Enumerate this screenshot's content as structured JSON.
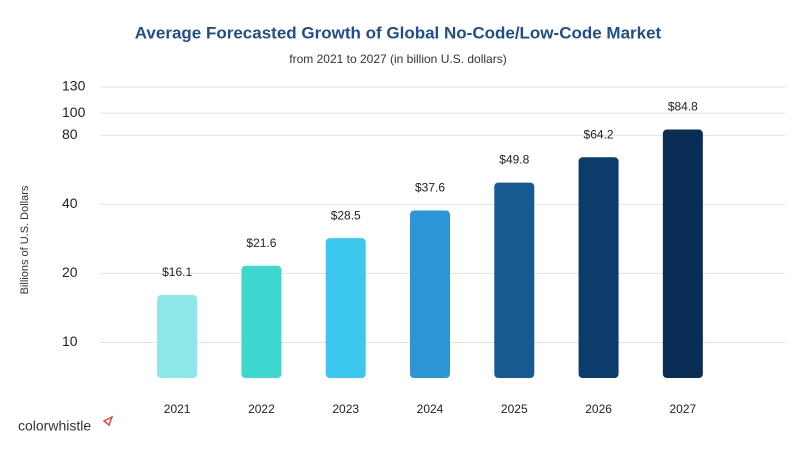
{
  "chart_data": {
    "type": "bar",
    "title": "Average Forecasted Growth of Global No-Code/Low-Code Market",
    "subtitle": "from 2021 to 2027 (in billion U.S. dollars)",
    "ylabel": "Billions of U.S. Dollars",
    "logo": "colorwhistle",
    "categories": [
      "2021",
      "2022",
      "2023",
      "2024",
      "2025",
      "2026",
      "2027"
    ],
    "values": [
      16.1,
      21.6,
      28.5,
      37.6,
      49.8,
      64.2,
      84.8
    ],
    "value_labels": [
      "$16.1",
      "$21.6",
      "$28.5",
      "$37.6",
      "$49.8",
      "$64.2",
      "$84.8"
    ],
    "colors": [
      "#8ce8e8",
      "#3ed8d0",
      "#3cc8ee",
      "#2b95d6",
      "#175a92",
      "#0c3c6c",
      "#0a2d55"
    ],
    "ylim": [
      7,
      130
    ],
    "yticks": [
      10,
      20,
      40,
      80,
      100,
      130
    ],
    "log_scale": true,
    "grid": true
  }
}
